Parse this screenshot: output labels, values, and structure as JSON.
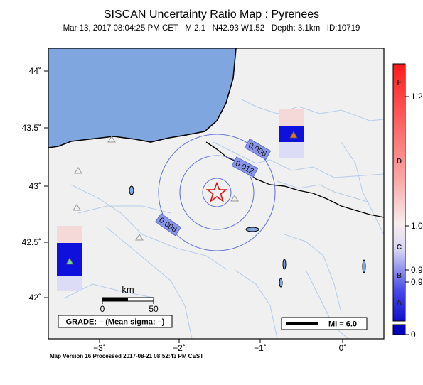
{
  "header": {
    "title": "SISCAN Uncertainty Ratio Map : Pyrenees",
    "subtitle": "Mar 13, 2017 08:04:25 PM CET   M 2.1   N42.93 W1.52   Depth: 3.1km   ID:10719"
  },
  "map": {
    "lat_ticks": [
      {
        "value": 44,
        "label": "44˚"
      },
      {
        "value": 43.5,
        "label": "43.5˚"
      },
      {
        "value": 43,
        "label": "43˚"
      },
      {
        "value": 42.5,
        "label": "42.5˚"
      },
      {
        "value": 42,
        "label": "42˚"
      }
    ],
    "lon_ticks": [
      {
        "value": -3,
        "label": "−3˚"
      },
      {
        "value": -2,
        "label": "−2˚"
      },
      {
        "value": -1,
        "label": "−1˚"
      },
      {
        "value": 0,
        "label": "0˚"
      }
    ],
    "contours": [
      {
        "label": "0.006",
        "level": 0.006
      },
      {
        "label": "0.012",
        "level": 0.012
      },
      {
        "label": "0.006",
        "level": 0.006
      }
    ],
    "scale_bar": {
      "unit": "km",
      "start_label": "0",
      "end_label": "50"
    },
    "grade_box": "GRADE: – (Mean sigma: –)",
    "mi_legend": "MI = 6.0",
    "epicenter": {
      "lat": 42.93,
      "lon": -1.52
    }
  },
  "colorbar": {
    "letters": [
      "F",
      "D",
      "C",
      "B",
      "A"
    ],
    "tick_labels": [
      "1.2",
      "1.0",
      "0.9",
      "0.9",
      "0"
    ]
  },
  "footer": {
    "processing": "Map Version 16 Processed 2017-08-21 08:52:43 PM CEST"
  },
  "colors": {
    "ocean": "#7fa6df",
    "land": "#f0f0f0",
    "contour": "#6a78d8",
    "rivers": "#b5cce8",
    "epicenter": "#e01010"
  }
}
